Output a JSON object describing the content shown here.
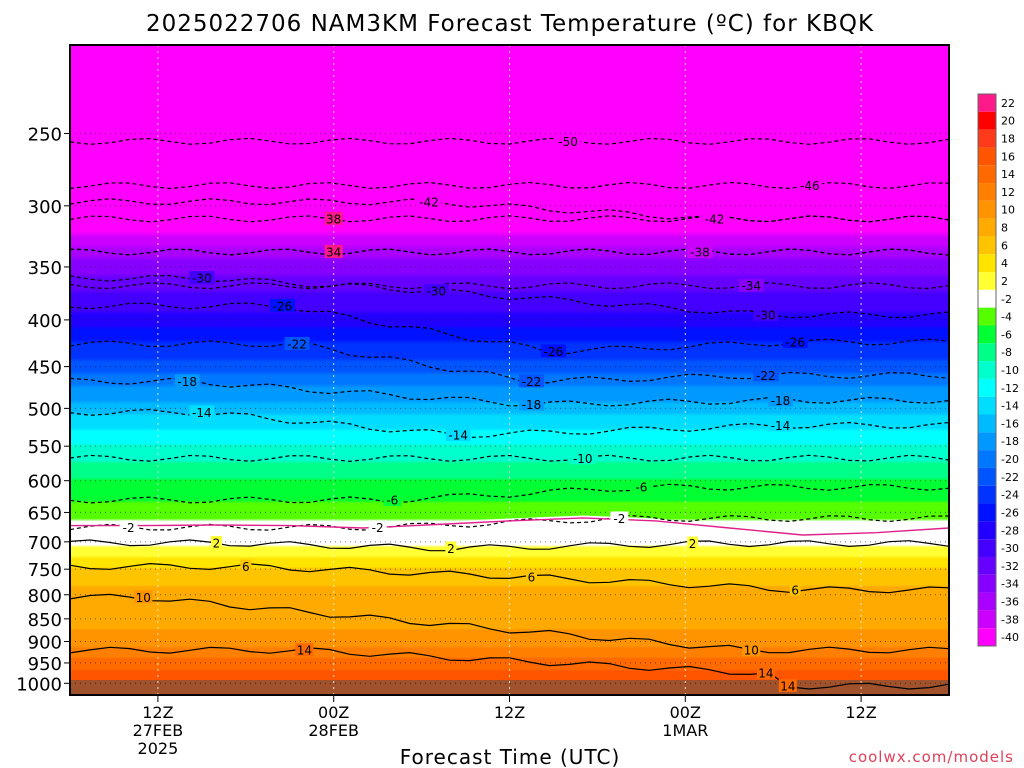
{
  "chart_data": {
    "type": "heatmap",
    "title": "2025022706 NAM3KM Forecast Temperature (ºC) for KBQK",
    "xlabel": "Forecast Time (UTC)",
    "ylabel": "",
    "credit": "coolwx.com/models",
    "y_scale": "log-pressure",
    "ylim": [
      1030,
      200
    ],
    "xlim_hours": [
      0,
      60
    ],
    "grid": true,
    "legend_placement": "right",
    "y_ticks": [
      250,
      300,
      350,
      400,
      450,
      500,
      550,
      600,
      650,
      700,
      750,
      800,
      850,
      900,
      950,
      1000
    ],
    "x_ticks": [
      {
        "hour": 6,
        "line1": "12Z",
        "line2": "27FEB",
        "line3": "2025"
      },
      {
        "hour": 18,
        "line1": "00Z",
        "line2": "28FEB",
        "line3": ""
      },
      {
        "hour": 30,
        "line1": "12Z",
        "line2": "",
        "line3": ""
      },
      {
        "hour": 42,
        "line1": "00Z",
        "line2": "1MAR",
        "line3": ""
      },
      {
        "hour": 54,
        "line1": "12Z",
        "line2": "",
        "line3": ""
      }
    ],
    "colorbar": {
      "labels": [
        "22",
        "20",
        "18",
        "16",
        "14",
        "12",
        "10",
        "8",
        "6",
        "4",
        "2",
        "-2",
        "-4",
        "-6",
        "-8",
        "-10",
        "-12",
        "-14",
        "-16",
        "-18",
        "-20",
        "-22",
        "-24",
        "-26",
        "-28",
        "-30",
        "-32",
        "-34",
        "-36",
        "-38",
        "-40"
      ],
      "colors": [
        "#ff1a8c",
        "#ff0000",
        "#ff3a1a",
        "#ff5500",
        "#ff6a00",
        "#ff8000",
        "#ff9400",
        "#ffaa00",
        "#ffc400",
        "#ffe400",
        "#ffff33",
        "#ffffff",
        "#55ff00",
        "#00ff33",
        "#00ff88",
        "#00ffcc",
        "#00ffff",
        "#00ddff",
        "#00bbff",
        "#0099ff",
        "#0077ff",
        "#0055ff",
        "#0033ff",
        "#0011ff",
        "#2200ff",
        "#4400ff",
        "#6600ff",
        "#8800ff",
        "#aa00ff",
        "#cc00ff",
        "#ff00ff"
      ]
    },
    "temperature_levels": [
      {
        "p": 200,
        "t": -52
      },
      {
        "p": 250,
        "t": -49
      },
      {
        "p": 300,
        "t": -42
      },
      {
        "p": 350,
        "t": -33
      },
      {
        "p": 400,
        "t": -27
      },
      {
        "p": 450,
        "t": -21
      },
      {
        "p": 500,
        "t": -15
      },
      {
        "p": 550,
        "t": -10
      },
      {
        "p": 600,
        "t": -6
      },
      {
        "p": 650,
        "t": -3
      },
      {
        "p": 700,
        "t": 1
      },
      {
        "p": 750,
        "t": 6
      },
      {
        "p": 800,
        "t": 9
      },
      {
        "p": 850,
        "t": 9
      },
      {
        "p": 900,
        "t": 11
      },
      {
        "p": 950,
        "t": 15
      },
      {
        "p": 1000,
        "t": 18
      }
    ],
    "contour_labels": [
      {
        "text": "-50",
        "hour": 34,
        "p": 255
      },
      {
        "text": "-46",
        "hour": 50.5,
        "p": 285
      },
      {
        "text": "-42",
        "hour": 24.5,
        "p": 297
      },
      {
        "text": "-42",
        "hour": 44,
        "p": 310
      },
      {
        "text": "38",
        "hour": 18,
        "p": 310
      },
      {
        "text": "-38",
        "hour": 43,
        "p": 337
      },
      {
        "text": "34",
        "hour": 18,
        "p": 337
      },
      {
        "text": "-34",
        "hour": 46.5,
        "p": 367
      },
      {
        "text": "-30",
        "hour": 9,
        "p": 360
      },
      {
        "text": "-30",
        "hour": 25,
        "p": 372
      },
      {
        "text": "-30",
        "hour": 47.5,
        "p": 395
      },
      {
        "text": "-26",
        "hour": 14.5,
        "p": 386
      },
      {
        "text": "-26",
        "hour": 33,
        "p": 433
      },
      {
        "text": "-26",
        "hour": 49.5,
        "p": 423
      },
      {
        "text": "-22",
        "hour": 15.5,
        "p": 425
      },
      {
        "text": "-22",
        "hour": 31.5,
        "p": 467
      },
      {
        "text": "-22",
        "hour": 47.5,
        "p": 460
      },
      {
        "text": "-18",
        "hour": 8,
        "p": 467
      },
      {
        "text": "-18",
        "hour": 31.5,
        "p": 495
      },
      {
        "text": "-18",
        "hour": 48.5,
        "p": 490
      },
      {
        "text": "-14",
        "hour": 9,
        "p": 505
      },
      {
        "text": "-14",
        "hour": 26.5,
        "p": 535
      },
      {
        "text": "-14",
        "hour": 48.5,
        "p": 522
      },
      {
        "text": "-10",
        "hour": 35,
        "p": 567
      },
      {
        "text": "-6",
        "hour": 22,
        "p": 630
      },
      {
        "text": "-6",
        "hour": 39,
        "p": 610
      },
      {
        "text": "-2",
        "hour": 4,
        "p": 675
      },
      {
        "text": "-2",
        "hour": 21,
        "p": 675
      },
      {
        "text": "-2",
        "hour": 37.5,
        "p": 660
      },
      {
        "text": "2",
        "hour": 10,
        "p": 702
      },
      {
        "text": "2",
        "hour": 26,
        "p": 712
      },
      {
        "text": "2",
        "hour": 42.5,
        "p": 703
      },
      {
        "text": "6",
        "hour": 12,
        "p": 745
      },
      {
        "text": "6",
        "hour": 31.5,
        "p": 765
      },
      {
        "text": "6",
        "hour": 49.5,
        "p": 790
      },
      {
        "text": "10",
        "hour": 5,
        "p": 805
      },
      {
        "text": "10",
        "hour": 46.5,
        "p": 920
      },
      {
        "text": "14",
        "hour": 16,
        "p": 920
      },
      {
        "text": "14",
        "hour": 47.5,
        "p": 975
      },
      {
        "text": "14",
        "hour": 49,
        "p": 1007
      }
    ]
  }
}
